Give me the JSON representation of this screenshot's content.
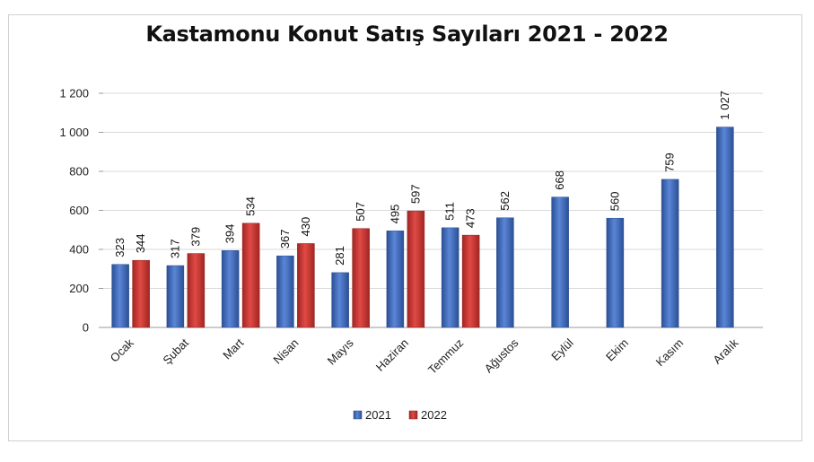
{
  "chart_data": {
    "type": "bar",
    "title": "Kastamonu Konut Satış Sayıları 2021 - 2022",
    "xlabel": "",
    "ylabel": "",
    "categories": [
      "Ocak",
      "Şubat",
      "Mart",
      "Nisan",
      "Mayıs",
      "Haziran",
      "Temmuz",
      "Ağustos",
      "Eylül",
      "Ekim",
      "Kasım",
      "Aralık"
    ],
    "series": [
      {
        "name": "2021",
        "color": "#3a66b8",
        "values": [
          323,
          317,
          394,
          367,
          281,
          495,
          511,
          562,
          668,
          560,
          759,
          1027
        ],
        "value_labels": [
          "323",
          "317",
          "394",
          "367",
          "281",
          "495",
          "511",
          "562",
          "668",
          "560",
          "759",
          "1 027"
        ]
      },
      {
        "name": "2022",
        "color": "#c8312e",
        "values": [
          344,
          379,
          534,
          430,
          507,
          597,
          473,
          null,
          null,
          null,
          null,
          null
        ],
        "value_labels": [
          "344",
          "379",
          "534",
          "430",
          "507",
          "597",
          "473",
          null,
          null,
          null,
          null,
          null
        ]
      }
    ],
    "ylim": [
      0,
      1200
    ],
    "yticks": [
      0,
      200,
      400,
      600,
      800,
      1000,
      1200
    ],
    "ytick_labels": [
      "0",
      "200",
      "400",
      "600",
      "800",
      "1 000",
      "1 200"
    ],
    "grid": true,
    "legend_position": "bottom"
  }
}
